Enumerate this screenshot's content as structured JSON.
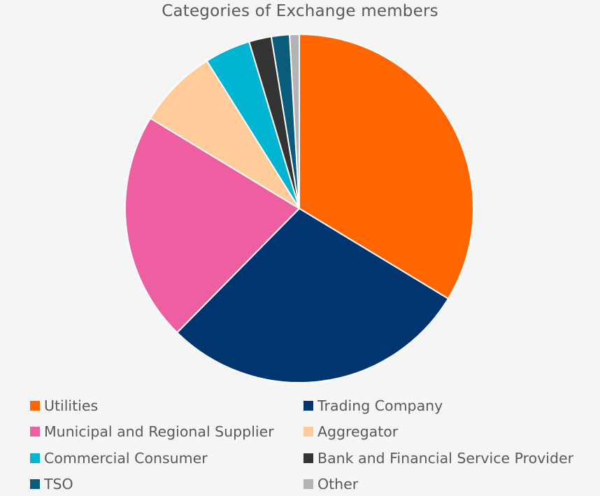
{
  "chart_data": {
    "type": "pie",
    "title": "Categories of Exchange members",
    "slices": [
      {
        "label": "Utilities",
        "value": 34,
        "color": "#ff6600"
      },
      {
        "label": "Trading Company",
        "value": 29,
        "color": "#003570"
      },
      {
        "label": "Municipal and Regional Supplier",
        "value": 21.5,
        "color": "#ee5fa2"
      },
      {
        "label": "Aggregator",
        "value": 7.5,
        "color": "#ffcc99"
      },
      {
        "label": "Commercial Consumer",
        "value": 4.3,
        "color": "#00b4d2"
      },
      {
        "label": "Bank and Financial Service Provider",
        "value": 2.1,
        "color": "#333333"
      },
      {
        "label": "TSO",
        "value": 1.7,
        "color": "#0b5c7a"
      },
      {
        "label": "Other",
        "value": 0.9,
        "color": "#b3b3b3"
      }
    ],
    "legend_position": "bottom"
  }
}
